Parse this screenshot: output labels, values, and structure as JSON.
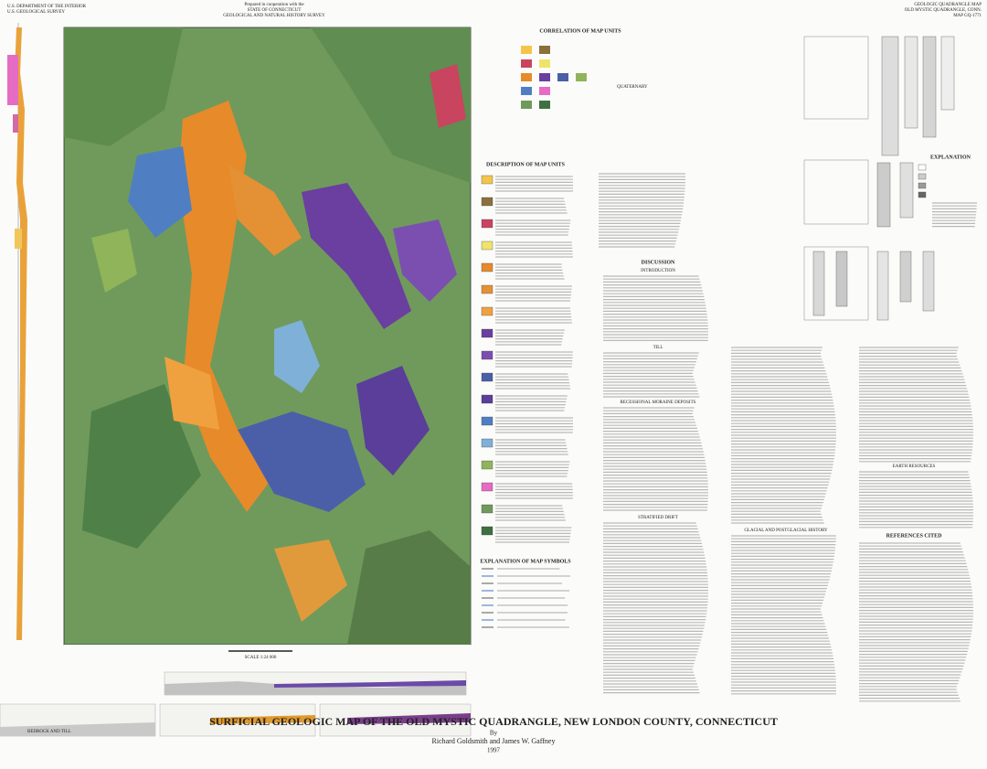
{
  "header": {
    "left": [
      "U.S. DEPARTMENT OF THE INTERIOR",
      "U.S. GEOLOGICAL SURVEY"
    ],
    "center": [
      "Prepared in cooperation with the",
      "STATE OF CONNECTICUT",
      "GEOLOGICAL AND NATURAL HISTORY SURVEY"
    ],
    "right": [
      "GEOLOGIC QUADRANGLE MAP",
      "OLD MYSTIC QUADRANGLE, CONN.",
      "MAP GQ-1771"
    ]
  },
  "map": {
    "scale": "SCALE 1:24 000"
  },
  "legend": {
    "correlation": "CORRELATION OF MAP UNITS",
    "quaternary": "QUATERNARY",
    "description": "DESCRIPTION OF MAP UNITS",
    "symbols": "EXPLANATION OF MAP SYMBOLS"
  },
  "discussion": {
    "title": "DISCUSSION",
    "sections": [
      "INTRODUCTION",
      "TILL",
      "RECESSIONAL MORAINE DEPOSITS",
      "STRATIFIED DRIFT",
      "GLACIAL AND POSTGLACIAL HISTORY",
      "EARTH RESOURCES",
      "REFERENCES CITED"
    ]
  },
  "figures": {
    "explanation": "EXPLANATION"
  },
  "profiles": {
    "label": "BEDROCK AND TILL"
  },
  "footer": {
    "title": "SURFICIAL GEOLOGIC MAP OF THE OLD MYSTIC QUADRANGLE, NEW LONDON COUNTY, CONNECTICUT",
    "by": "By",
    "authors": "Richard Goldsmith and James W. Gaffney",
    "year": "1997"
  }
}
